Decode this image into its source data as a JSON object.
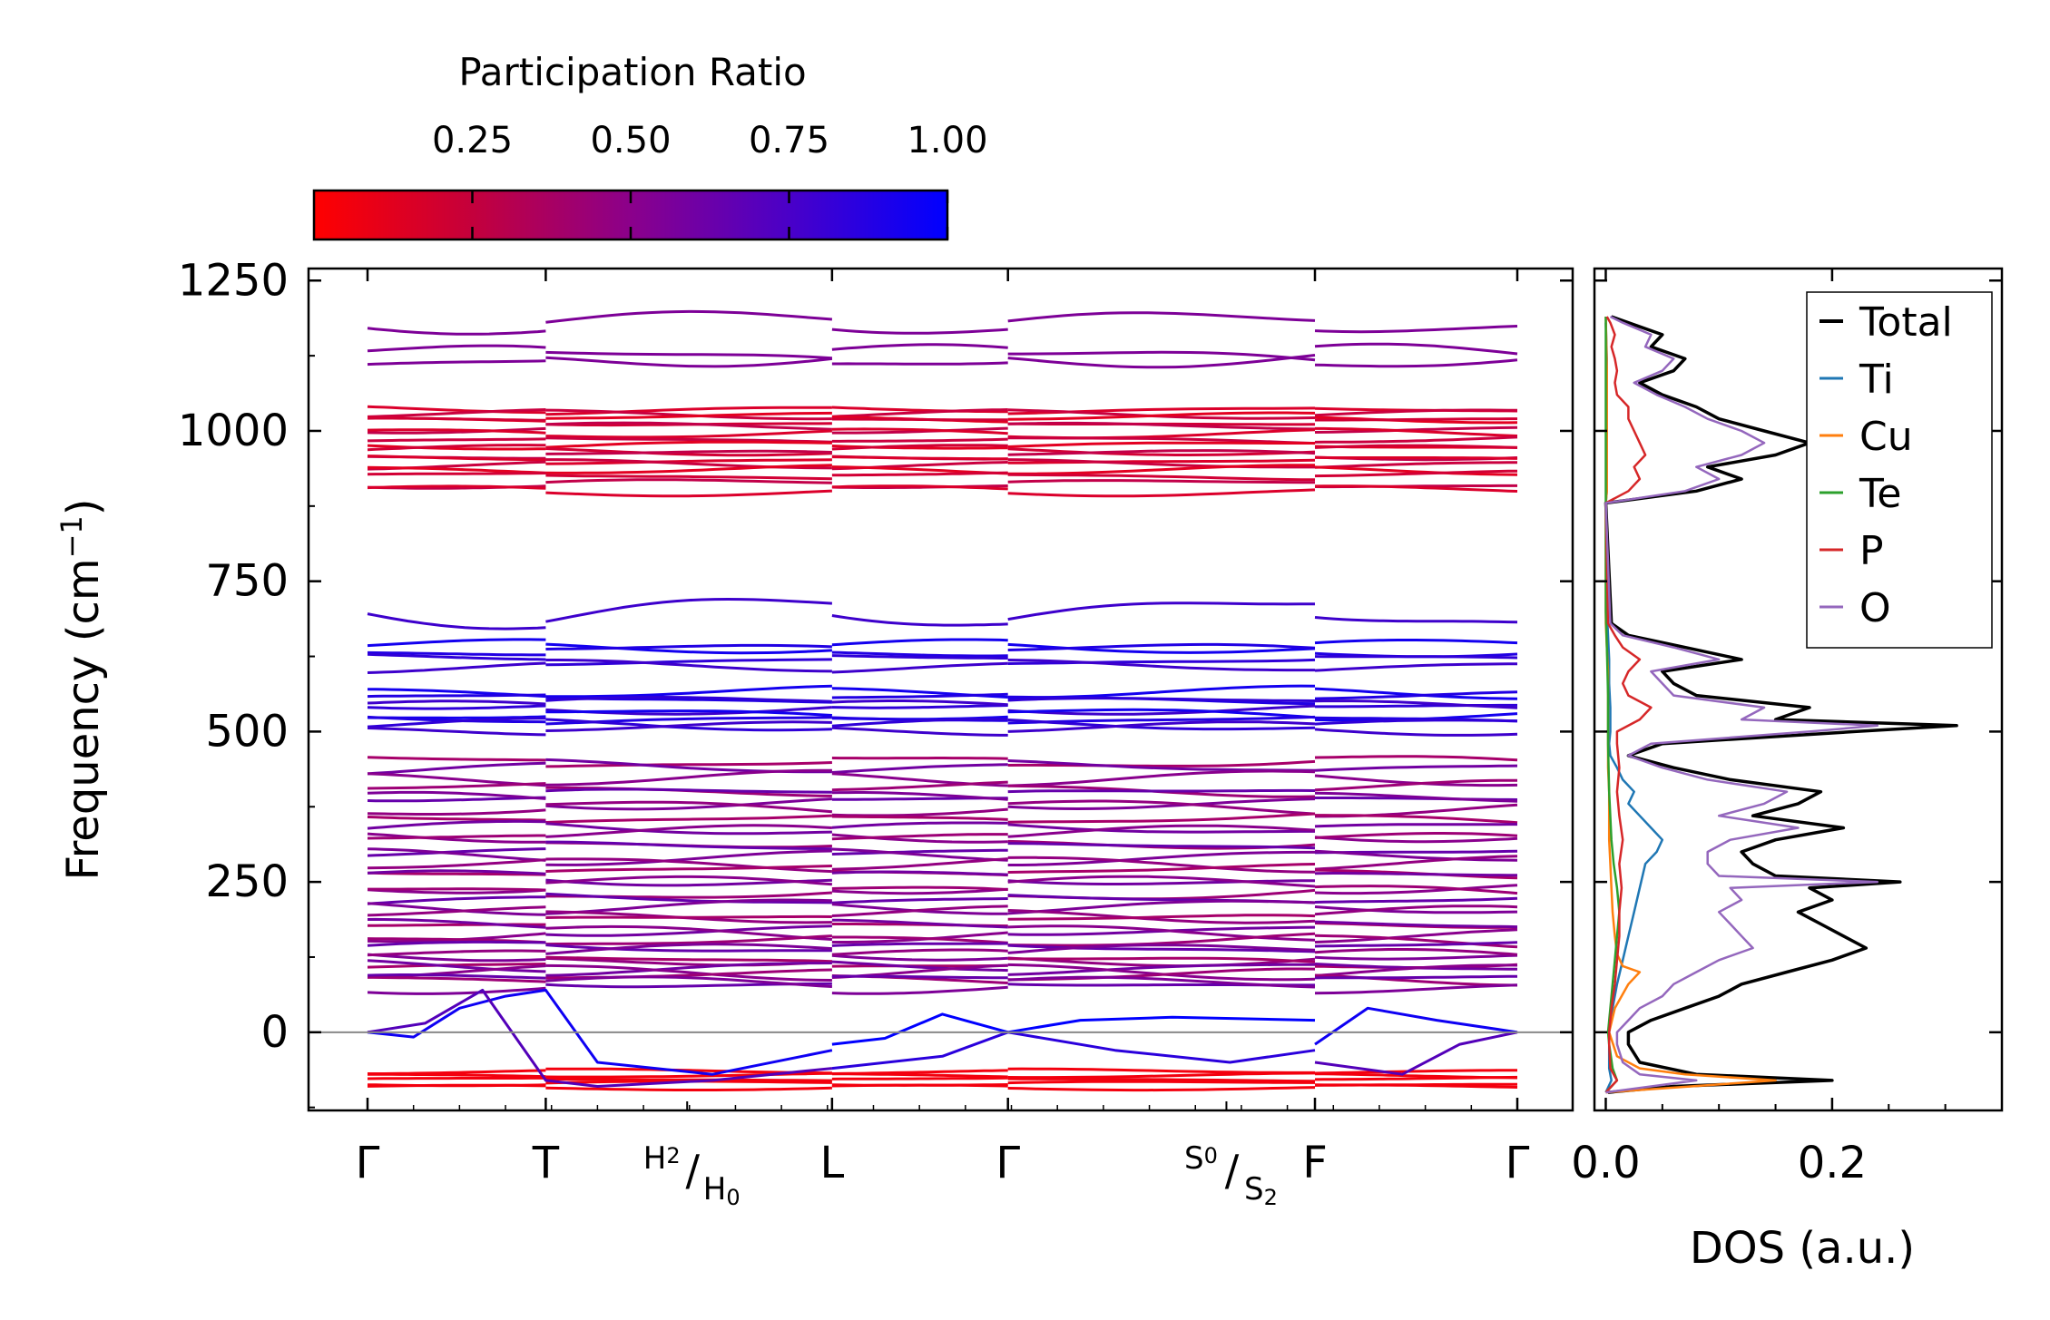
{
  "chart_data": [
    {
      "type": "line",
      "subtype": "phonon-band-structure",
      "ylabel": "Frequency (cm",
      "ylabel_sup": "−1",
      "ylabel_tail": ")",
      "ylim": [
        -130,
        1270
      ],
      "yticks": [
        0,
        250,
        500,
        750,
        1000,
        1250
      ],
      "xticks": [
        {
          "label": "Γ",
          "x": 0.0
        },
        {
          "label": "T",
          "x": 0.155
        },
        {
          "label": "L",
          "x": 0.404
        },
        {
          "label": "Γ",
          "x": 0.557
        },
        {
          "label": "F",
          "x": 0.824
        },
        {
          "label": "Γ",
          "x": 1.0
        }
      ],
      "minor_labels": [
        {
          "top": "H",
          "top_sub": "2",
          "bottom": "H",
          "bottom_sub": "0",
          "x": 0.278
        },
        {
          "top": "S",
          "top_sub": "0",
          "bottom": "S",
          "bottom_sub": "2",
          "x": 0.747
        }
      ],
      "zero_line": 0,
      "colorbar": {
        "title": "Participation Ratio",
        "ticks": [
          {
            "label": "0.25",
            "value": 0.25
          },
          {
            "label": "0.50",
            "value": 0.5
          },
          {
            "label": "0.75",
            "value": 0.75
          },
          {
            "label": "1.00",
            "value": 1.0
          }
        ],
        "range": [
          0.0,
          1.0
        ],
        "low_color": "#ff0000",
        "mid_color": "#8b008b",
        "high_color": "#0000ff"
      },
      "bands": {
        "high": [
          1180,
          1125,
          1120,
          1035,
          1028,
          1022,
          1015,
          1005,
          996,
          985,
          976,
          968,
          960,
          952,
          944,
          935,
          926,
          912,
          900
        ],
        "upper_mid": [
          697,
          642,
          635,
          620,
          608,
          565,
          556,
          548,
          540,
          528,
          520,
          512,
          505
        ],
        "lower_mid": [
          450,
          440,
          422,
          405,
          395,
          385,
          372,
          355,
          340,
          330,
          318,
          305,
          292,
          280,
          268,
          256,
          245,
          232,
          220,
          208,
          196,
          185,
          174,
          163,
          152,
          142,
          133,
          124,
          116,
          108,
          100,
          92,
          85,
          78
        ],
        "negative": [
          -65,
          -72,
          -78,
          -85,
          -92
        ]
      }
    },
    {
      "type": "line",
      "subtype": "density-of-states",
      "xlabel": "DOS (a.u.)",
      "xlim": [
        -0.01,
        0.35
      ],
      "xticks": [
        {
          "label": "0.0",
          "value": 0.0
        },
        {
          "label": "0.2",
          "value": 0.2
        }
      ],
      "ylim": [
        -130,
        1270
      ],
      "legend": {
        "placement": "top-right"
      },
      "series": [
        {
          "name": "Total",
          "color": "#000000",
          "freq": [
            -100,
            -90,
            -80,
            -70,
            -50,
            -20,
            0,
            20,
            40,
            60,
            80,
            100,
            120,
            140,
            160,
            180,
            200,
            220,
            240,
            250,
            260,
            280,
            300,
            320,
            340,
            360,
            380,
            400,
            420,
            440,
            460,
            480,
            500,
            510,
            520,
            540,
            560,
            580,
            600,
            620,
            640,
            660,
            680,
            880,
            900,
            920,
            940,
            960,
            980,
            1000,
            1020,
            1040,
            1060,
            1080,
            1100,
            1120,
            1140,
            1160,
            1180,
            1190
          ],
          "dos": [
            0.002,
            0.06,
            0.2,
            0.08,
            0.03,
            0.02,
            0.02,
            0.04,
            0.07,
            0.1,
            0.12,
            0.16,
            0.2,
            0.23,
            0.21,
            0.19,
            0.17,
            0.2,
            0.18,
            0.26,
            0.15,
            0.13,
            0.12,
            0.15,
            0.21,
            0.13,
            0.17,
            0.19,
            0.11,
            0.06,
            0.02,
            0.05,
            0.22,
            0.31,
            0.15,
            0.18,
            0.08,
            0.06,
            0.05,
            0.12,
            0.07,
            0.02,
            0.005,
            0.0,
            0.08,
            0.12,
            0.09,
            0.15,
            0.18,
            0.14,
            0.1,
            0.08,
            0.05,
            0.03,
            0.06,
            0.07,
            0.04,
            0.05,
            0.02,
            0.005
          ]
        },
        {
          "name": "Ti",
          "color": "#1f77b4",
          "freq": [
            -100,
            -80,
            -60,
            -20,
            0,
            40,
            80,
            120,
            160,
            200,
            240,
            280,
            300,
            320,
            340,
            360,
            380,
            400,
            420,
            440,
            460,
            480,
            500,
            540,
            580,
            620,
            660,
            700,
            880,
            900,
            960,
            1000,
            1060,
            1120,
            1180
          ],
          "dos": [
            0.0,
            0.005,
            0.003,
            0.003,
            0.003,
            0.006,
            0.01,
            0.015,
            0.02,
            0.025,
            0.03,
            0.035,
            0.045,
            0.05,
            0.04,
            0.03,
            0.02,
            0.025,
            0.015,
            0.01,
            0.004,
            0.003,
            0.004,
            0.004,
            0.003,
            0.003,
            0.002,
            0.001,
            0.0,
            0.001,
            0.001,
            0.001,
            0.001,
            0.001,
            0.0
          ]
        },
        {
          "name": "Cu",
          "color": "#ff7f0e",
          "freq": [
            -100,
            -80,
            -70,
            -60,
            -40,
            0,
            40,
            80,
            100,
            110,
            130,
            160,
            200,
            240,
            280,
            320,
            360,
            400,
            440,
            480,
            520,
            560,
            600,
            640,
            680,
            880,
            900,
            1000,
            1100,
            1190
          ],
          "dos": [
            0.0,
            0.15,
            0.07,
            0.03,
            0.01,
            0.003,
            0.008,
            0.02,
            0.03,
            0.015,
            0.01,
            0.008,
            0.006,
            0.005,
            0.004,
            0.003,
            0.003,
            0.003,
            0.002,
            0.002,
            0.002,
            0.002,
            0.002,
            0.001,
            0.0,
            0.0,
            0.001,
            0.001,
            0.001,
            0.0
          ]
        },
        {
          "name": "Te",
          "color": "#2ca02c",
          "freq": [
            -100,
            -80,
            -60,
            -20,
            0,
            40,
            80,
            120,
            160,
            200,
            240,
            280,
            320,
            400,
            480,
            560,
            640,
            700,
            880,
            900,
            1000,
            1100,
            1190
          ],
          "dos": [
            0.0,
            0.01,
            0.006,
            0.003,
            0.002,
            0.004,
            0.006,
            0.008,
            0.01,
            0.012,
            0.01,
            0.007,
            0.005,
            0.003,
            0.002,
            0.002,
            0.001,
            0.0,
            0.0,
            0.0,
            0.0,
            0.0,
            0.0
          ]
        },
        {
          "name": "P",
          "color": "#d62728",
          "freq": [
            -100,
            -80,
            -60,
            -20,
            0,
            40,
            80,
            120,
            160,
            200,
            240,
            280,
            320,
            360,
            400,
            440,
            480,
            500,
            520,
            540,
            560,
            580,
            600,
            620,
            640,
            660,
            680,
            880,
            900,
            920,
            940,
            960,
            980,
            1000,
            1020,
            1040,
            1060,
            1080,
            1100,
            1120,
            1140,
            1160,
            1180,
            1190
          ],
          "dos": [
            0.0,
            0.01,
            0.004,
            0.003,
            0.003,
            0.005,
            0.008,
            0.01,
            0.012,
            0.012,
            0.014,
            0.012,
            0.015,
            0.012,
            0.01,
            0.012,
            0.01,
            0.01,
            0.03,
            0.04,
            0.02,
            0.015,
            0.02,
            0.03,
            0.015,
            0.008,
            0.002,
            0.0,
            0.02,
            0.03,
            0.025,
            0.035,
            0.03,
            0.025,
            0.02,
            0.02,
            0.01,
            0.008,
            0.01,
            0.008,
            0.005,
            0.008,
            0.004,
            0.001
          ]
        },
        {
          "name": "O",
          "color": "#9467bd",
          "freq": [
            -100,
            -80,
            -70,
            -50,
            -20,
            0,
            20,
            40,
            60,
            80,
            100,
            120,
            140,
            160,
            180,
            200,
            220,
            240,
            250,
            260,
            280,
            300,
            320,
            340,
            360,
            380,
            400,
            420,
            440,
            460,
            480,
            500,
            510,
            520,
            540,
            560,
            580,
            600,
            620,
            640,
            660,
            680,
            880,
            900,
            920,
            940,
            960,
            980,
            1000,
            1020,
            1040,
            1060,
            1080,
            1100,
            1120,
            1140,
            1160,
            1180,
            1190
          ],
          "dos": [
            0.0,
            0.08,
            0.03,
            0.015,
            0.01,
            0.01,
            0.02,
            0.03,
            0.05,
            0.06,
            0.08,
            0.1,
            0.13,
            0.12,
            0.11,
            0.1,
            0.12,
            0.11,
            0.24,
            0.1,
            0.09,
            0.09,
            0.11,
            0.17,
            0.1,
            0.14,
            0.16,
            0.09,
            0.05,
            0.02,
            0.04,
            0.18,
            0.24,
            0.12,
            0.14,
            0.06,
            0.05,
            0.04,
            0.1,
            0.06,
            0.015,
            0.004,
            0.0,
            0.07,
            0.1,
            0.08,
            0.12,
            0.14,
            0.12,
            0.09,
            0.07,
            0.045,
            0.025,
            0.05,
            0.06,
            0.035,
            0.04,
            0.015,
            0.004
          ]
        }
      ]
    }
  ]
}
